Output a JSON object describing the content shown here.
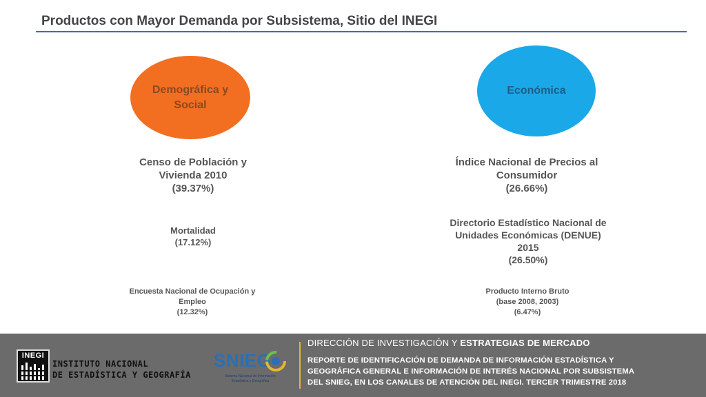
{
  "title": "Productos con Mayor Demanda por Subsistema, Sitio del INEGI",
  "subsystems": {
    "demographic": {
      "label_lines": [
        "Demográfica y",
        "Social"
      ],
      "color": "#f26e21",
      "products": [
        {
          "lines": [
            "Censo de Población y",
            "Vivienda 2010",
            "(39.37%)"
          ]
        },
        {
          "lines": [
            "Mortalidad",
            "(17.12%)"
          ]
        },
        {
          "lines": [
            "Encuesta Nacional de Ocupación y",
            "Empleo",
            "(12.32%)"
          ]
        }
      ]
    },
    "economic": {
      "label_lines": [
        "Económica"
      ],
      "color": "#1aa8e8",
      "products": [
        {
          "lines": [
            "Índice Nacional de Precios al",
            "Consumidor",
            "(26.66%)"
          ]
        },
        {
          "lines": [
            "Directorio Estadístico Nacional de",
            "Unidades Económicas (DENUE)",
            "2015",
            "(26.50%)"
          ]
        },
        {
          "lines": [
            "Producto Interno Bruto",
            "(base 2008, 2003)",
            "(6.47%)"
          ]
        }
      ]
    }
  },
  "footer": {
    "inegi_logo_text": "INEGI",
    "inegi_name_lines": [
      "INSTITUTO NACIONAL",
      "DE ESTADÍSTICA Y GEOGRAFÍA"
    ],
    "snieg_logo_text": "SNIEG",
    "snieg_subtitle_lines": [
      "Sistema Nacional de Información",
      "Estadística y Geográfica"
    ],
    "direction_prefix": "DIRECCIÓN DE INVESTIGACIÓN Y ",
    "direction_bold": "ESTRATEGIAS DE MERCADO",
    "report_lines": [
      "REPORTE DE IDENTIFICACIÓN DE DEMANDA DE INFORMACIÓN ESTADÍSTICA  Y",
      "GEOGRÁFICA GENERAL E INFORMACIÓN DE INTERÉS NACIONAL POR SUBSISTEMA",
      "DEL SNIEG, EN LOS CANALES DE ATENCIÓN DEL INEGI. TERCER TRIMESTRE 2018"
    ],
    "accent_color": "#e5b634"
  }
}
